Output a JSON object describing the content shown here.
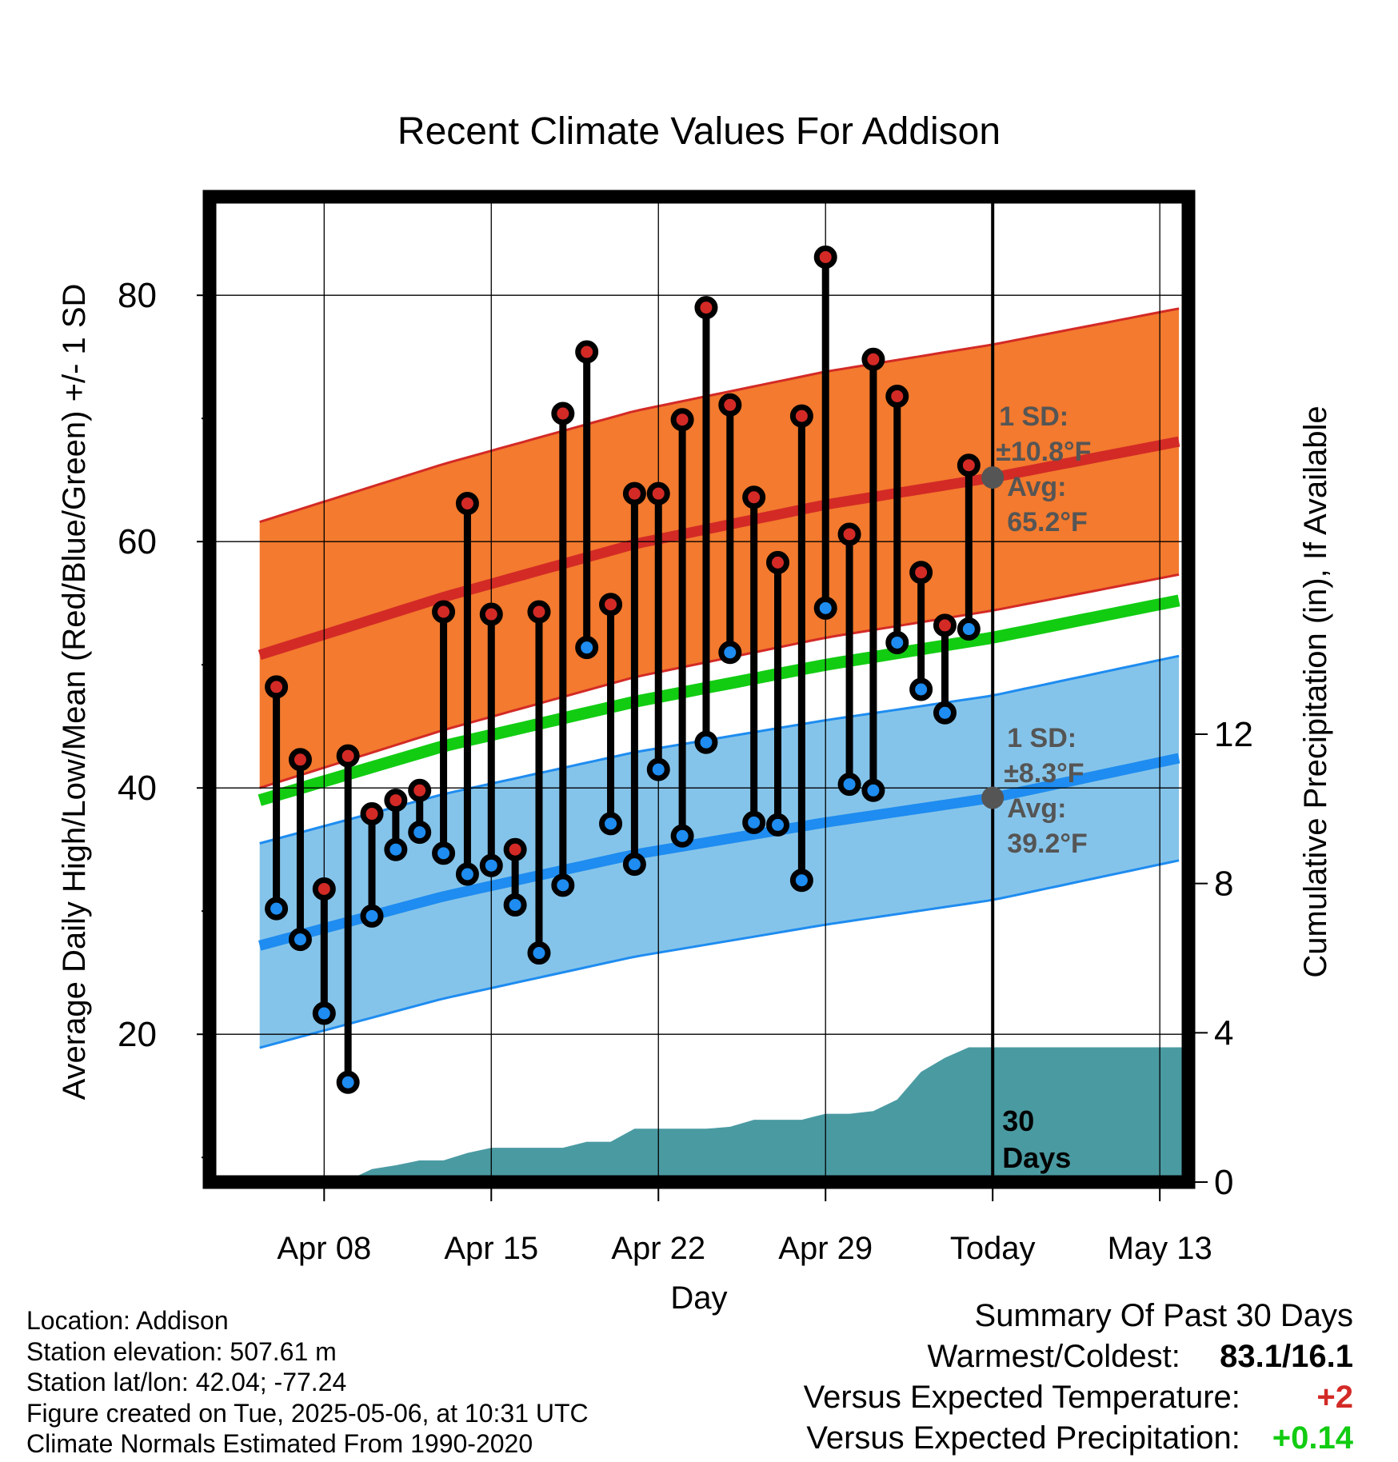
{
  "title": "Recent Climate Values For Addison",
  "colors": {
    "high_band": "#F37A2E",
    "high_line": "#D32A26",
    "low_band": "#85C4EA",
    "low_line": "#1E8CF0",
    "mean_line": "#12CC12",
    "precip": "#4A9AA2",
    "annotation": "#555555",
    "positive": "#D32A26",
    "precip_positive": "#12CC12"
  },
  "chart_data": {
    "type": "line",
    "xlabel": "Day",
    "ylabel": "Average Daily High/Low/Mean (Red/Blue/Green) +/- 1 SD",
    "y2label": "Cumulative Precipitation (in), If Available",
    "ylim": [
      8,
      88
    ],
    "y2lim": [
      0,
      26.4
    ],
    "xlim": [
      -4.8,
      36.2
    ],
    "yticks": [
      20,
      40,
      60,
      80
    ],
    "y2ticks": [
      0,
      4,
      8,
      12
    ],
    "xticks": [
      {
        "day": 0,
        "label": "Apr 08"
      },
      {
        "day": 7,
        "label": "Apr 15"
      },
      {
        "day": 14,
        "label": "Apr 22"
      },
      {
        "day": 21,
        "label": "Apr 29"
      },
      {
        "day": 28,
        "label": "Today"
      },
      {
        "day": 35,
        "label": "May 13"
      }
    ],
    "grid": true,
    "today_day": 28,
    "today_label": "30 Days",
    "normals": {
      "days": [
        -2.7,
        5,
        13,
        21,
        28,
        36
      ],
      "avg_high": [
        50.8,
        55.5,
        59.8,
        63.0,
        65.2,
        68.2
      ],
      "high_sd": 10.8,
      "avg_low": [
        27.2,
        31.2,
        34.6,
        37.2,
        39.2,
        42.5
      ],
      "low_sd": 8.3,
      "avg_mean": [
        39.0,
        43.4,
        47.0,
        50.0,
        52.2,
        55.3
      ]
    },
    "annotations": {
      "high_sd": "1 SD:",
      "high_sd_value": "±10.8°F",
      "high_avg": "Avg:",
      "high_avg_value": "65.2°F",
      "low_sd": "1 SD:",
      "low_sd_value": "±8.3°F",
      "low_avg": "Avg:",
      "low_avg_value": "39.2°F"
    },
    "series": [
      {
        "name": "High",
        "days": [
          -2,
          -1,
          0,
          1,
          2,
          3,
          4,
          5,
          6,
          7,
          8,
          9,
          10,
          11,
          12,
          13,
          14,
          15,
          16,
          17,
          18,
          19,
          20,
          21,
          22,
          23,
          24,
          25,
          26,
          27
        ],
        "values": [
          48.2,
          42.3,
          31.8,
          42.6,
          37.9,
          39.0,
          39.8,
          54.3,
          63.1,
          54.1,
          35.0,
          54.3,
          70.4,
          75.4,
          54.9,
          63.9,
          63.9,
          69.9,
          79.0,
          71.1,
          63.6,
          58.3,
          70.2,
          83.1,
          60.6,
          74.8,
          71.8,
          57.5,
          53.2,
          66.2
        ]
      },
      {
        "name": "Low",
        "days": [
          -2,
          -1,
          0,
          1,
          2,
          3,
          4,
          5,
          6,
          7,
          8,
          9,
          10,
          11,
          12,
          13,
          14,
          15,
          16,
          17,
          18,
          19,
          20,
          21,
          22,
          23,
          24,
          25,
          26,
          27
        ],
        "values": [
          30.2,
          27.7,
          21.7,
          16.1,
          29.6,
          35.0,
          36.4,
          34.7,
          33.0,
          33.7,
          30.5,
          26.6,
          32.1,
          51.4,
          37.1,
          33.8,
          41.5,
          36.1,
          43.7,
          51.0,
          37.2,
          37.0,
          32.5,
          54.6,
          40.3,
          39.8,
          51.8,
          48.0,
          46.1,
          52.9
        ]
      },
      {
        "name": "Cumulative Precipitation",
        "days": [
          -3,
          -1,
          0,
          1,
          2,
          3,
          4,
          5,
          6,
          7,
          8,
          9,
          10,
          11,
          12,
          13,
          14,
          15,
          16,
          17,
          18,
          19,
          20,
          21,
          22,
          23,
          24,
          25,
          26,
          27,
          28,
          36.2
        ],
        "values": [
          0.0,
          0.05,
          0.05,
          0.05,
          0.35,
          0.45,
          0.58,
          0.58,
          0.78,
          0.92,
          0.92,
          0.92,
          0.92,
          1.08,
          1.08,
          1.43,
          1.43,
          1.43,
          1.43,
          1.48,
          1.67,
          1.67,
          1.67,
          1.83,
          1.83,
          1.9,
          2.21,
          2.95,
          3.33,
          3.61,
          3.61,
          3.61
        ]
      }
    ]
  },
  "footer": {
    "location": "Location: Addison",
    "elevation": "Station elevation: 507.61 m",
    "latlon": "Station lat/lon: 42.04; -77.24",
    "created": "Figure created on Tue, 2025-05-06, at 10:31 UTC",
    "normals_period": "Climate Normals Estimated From 1990-2020"
  },
  "summary": {
    "heading": "Summary Of Past 30 Days",
    "warmest_label": "Warmest/Coldest:",
    "warmest_value": "83.1/16.1",
    "temp_label": "Versus Expected Temperature:",
    "temp_value": "+2",
    "precip_label": "Versus Expected Precipitation:",
    "precip_value": "+0.14"
  }
}
